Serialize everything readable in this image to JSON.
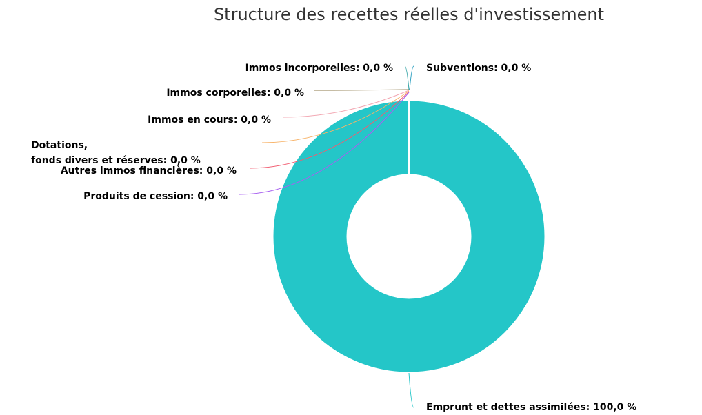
{
  "chart_data": {
    "type": "pie",
    "donut": true,
    "title": "Structure des recettes réelles d'investissement",
    "categories": [
      "Emprunt et dettes assimilées: 100,0 %",
      "Subventions: 0,0 %",
      "Immos incorporelles: 0,0 %",
      "Immos corporelles: 0,0 %",
      "Immos en cours: 0,0 %",
      "Dotations,\nfonds divers et réserves: 0,0 %",
      "Autres immos financières: 0,0 %",
      "Produits de cession: 0,0 %"
    ],
    "values": [
      100,
      0,
      0,
      0,
      0,
      0,
      0,
      0
    ],
    "colors": [
      "#24c6c8",
      "#2b9fc0",
      "#3aa6a8",
      "#8d7a4a",
      "#f2a7b2",
      "#f7b267",
      "#f15c70",
      "#a860f0"
    ]
  }
}
